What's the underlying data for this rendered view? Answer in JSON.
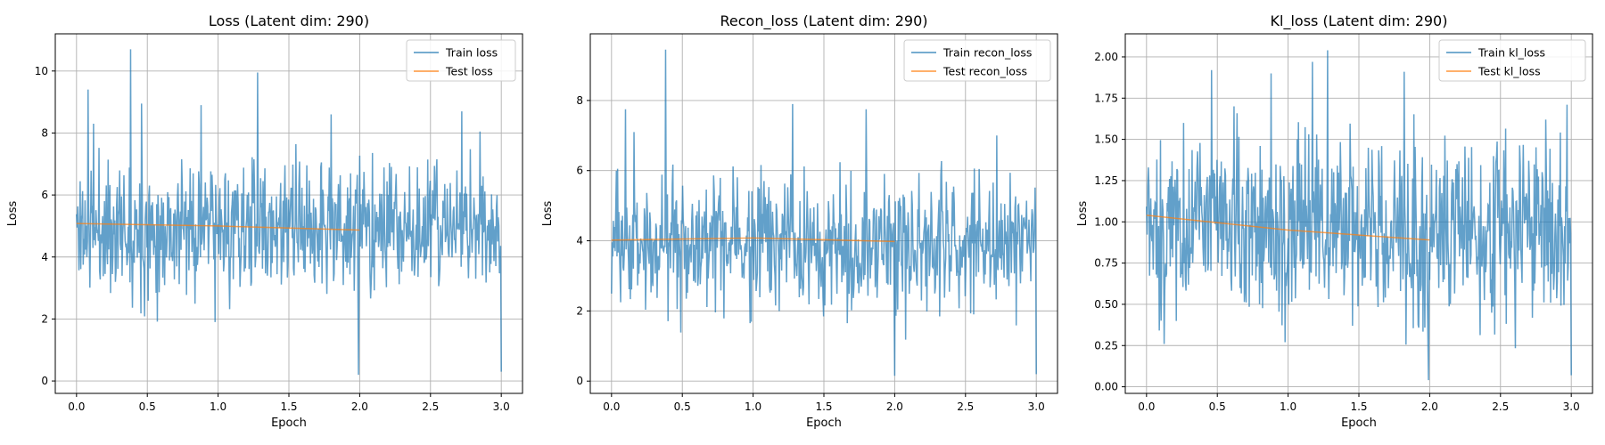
{
  "figure": {
    "background": "#ffffff"
  },
  "colors": {
    "train": "#1f77b4",
    "test": "#ff7f0e",
    "grid": "#b0b0b0",
    "axis": "#000000"
  },
  "chart_data": [
    {
      "type": "line",
      "title": "Loss (Latent dim: 290)",
      "xlabel": "Epoch",
      "ylabel": "Loss",
      "xlim": [
        -0.15,
        3.15
      ],
      "ylim": [
        -0.4,
        11.2
      ],
      "xticks": [
        0.0,
        0.5,
        1.0,
        1.5,
        2.0,
        2.5,
        3.0
      ],
      "yticks": [
        0,
        2,
        4,
        6,
        8,
        10
      ],
      "tick_decimals": 0,
      "grid": true,
      "legend": "top-right",
      "series": [
        {
          "name": "Train loss",
          "kind": "noisy",
          "n_points": 700,
          "x_range": [
            0,
            3
          ],
          "mean": 4.95,
          "spread": 1.05,
          "seed": 11,
          "spikes": [
            {
              "x": 0.08,
              "y": 9.4
            },
            {
              "x": 0.12,
              "y": 8.3
            },
            {
              "x": 0.38,
              "y": 10.7
            },
            {
              "x": 0.46,
              "y": 8.95
            },
            {
              "x": 0.88,
              "y": 8.9
            },
            {
              "x": 0.98,
              "y": 1.9
            },
            {
              "x": 1.28,
              "y": 9.95
            },
            {
              "x": 1.8,
              "y": 8.6
            },
            {
              "x": 1.99,
              "y": 0.2
            },
            {
              "x": 2.72,
              "y": 8.7
            },
            {
              "x": 2.85,
              "y": 8.05
            },
            {
              "x": 3.0,
              "y": 0.3
            }
          ],
          "color": "#1f77b4",
          "opacity": 0.7
        },
        {
          "name": "Test loss",
          "kind": "line",
          "x": [
            0,
            1,
            2
          ],
          "y": [
            5.08,
            5.0,
            4.87
          ],
          "color": "#ff7f0e",
          "opacity": 0.7
        }
      ]
    },
    {
      "type": "line",
      "title": "Recon_loss (Latent dim: 290)",
      "xlabel": "Epoch",
      "ylabel": "Loss",
      "xlim": [
        -0.15,
        3.15
      ],
      "ylim": [
        -0.35,
        9.9
      ],
      "xticks": [
        0.0,
        0.5,
        1.0,
        1.5,
        2.0,
        2.5,
        3.0
      ],
      "yticks": [
        0,
        2,
        4,
        6,
        8
      ],
      "tick_decimals": 0,
      "grid": true,
      "legend": "top-right",
      "series": [
        {
          "name": "Train recon_loss",
          "kind": "noisy",
          "n_points": 700,
          "x_range": [
            0,
            3
          ],
          "mean": 3.95,
          "spread": 0.95,
          "seed": 23,
          "spikes": [
            {
              "x": 0.1,
              "y": 7.75
            },
            {
              "x": 0.16,
              "y": 7.1
            },
            {
              "x": 0.38,
              "y": 9.45
            },
            {
              "x": 0.98,
              "y": 1.65
            },
            {
              "x": 1.28,
              "y": 7.9
            },
            {
              "x": 1.8,
              "y": 7.75
            },
            {
              "x": 2.0,
              "y": 0.15
            },
            {
              "x": 2.72,
              "y": 7.0
            },
            {
              "x": 3.0,
              "y": 0.2
            }
          ],
          "color": "#1f77b4",
          "opacity": 0.7
        },
        {
          "name": "Test recon_loss",
          "kind": "line",
          "x": [
            0,
            1,
            2
          ],
          "y": [
            4.02,
            4.08,
            3.98
          ],
          "color": "#ff7f0e",
          "opacity": 0.7
        }
      ]
    },
    {
      "type": "line",
      "title": "Kl_loss (Latent dim: 290)",
      "xlabel": "Epoch",
      "ylabel": "Loss",
      "xlim": [
        -0.15,
        3.15
      ],
      "ylim": [
        -0.04,
        2.14
      ],
      "xticks": [
        0.0,
        0.5,
        1.0,
        1.5,
        2.0,
        2.5,
        3.0
      ],
      "yticks": [
        0.0,
        0.25,
        0.5,
        0.75,
        1.0,
        1.25,
        1.5,
        1.75,
        2.0
      ],
      "tick_decimals": 2,
      "grid": true,
      "legend": "top-right",
      "series": [
        {
          "name": "Train kl_loss",
          "kind": "noisy",
          "n_points": 700,
          "x_range": [
            0,
            3
          ],
          "mean": 0.96,
          "spread": 0.28,
          "seed": 37,
          "spikes": [
            {
              "x": 0.26,
              "y": 1.6
            },
            {
              "x": 0.46,
              "y": 1.92
            },
            {
              "x": 0.62,
              "y": 1.7
            },
            {
              "x": 0.88,
              "y": 1.9
            },
            {
              "x": 0.98,
              "y": 0.27
            },
            {
              "x": 1.17,
              "y": 1.97
            },
            {
              "x": 1.28,
              "y": 2.04
            },
            {
              "x": 1.82,
              "y": 1.91
            },
            {
              "x": 1.99,
              "y": 0.04
            },
            {
              "x": 2.82,
              "y": 1.62
            },
            {
              "x": 3.0,
              "y": 0.07
            }
          ],
          "color": "#1f77b4",
          "opacity": 0.7
        },
        {
          "name": "Test kl_loss",
          "kind": "line",
          "x": [
            0,
            1,
            2
          ],
          "y": [
            1.04,
            0.95,
            0.89
          ],
          "color": "#ff7f0e",
          "opacity": 0.7
        }
      ]
    }
  ]
}
